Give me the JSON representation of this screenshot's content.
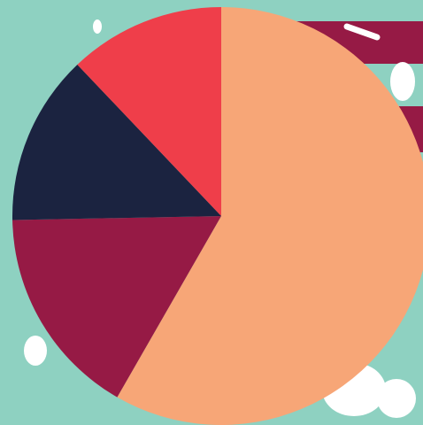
{
  "chart_data": {
    "type": "pie",
    "categories": [
      null,
      null,
      null,
      null
    ],
    "values": [
      58.3,
      16.4,
      13.2,
      12.1
    ],
    "colors": [
      "#f7a677",
      "#961a45",
      "#1b2340",
      "#ef3e4a"
    ]
  }
}
